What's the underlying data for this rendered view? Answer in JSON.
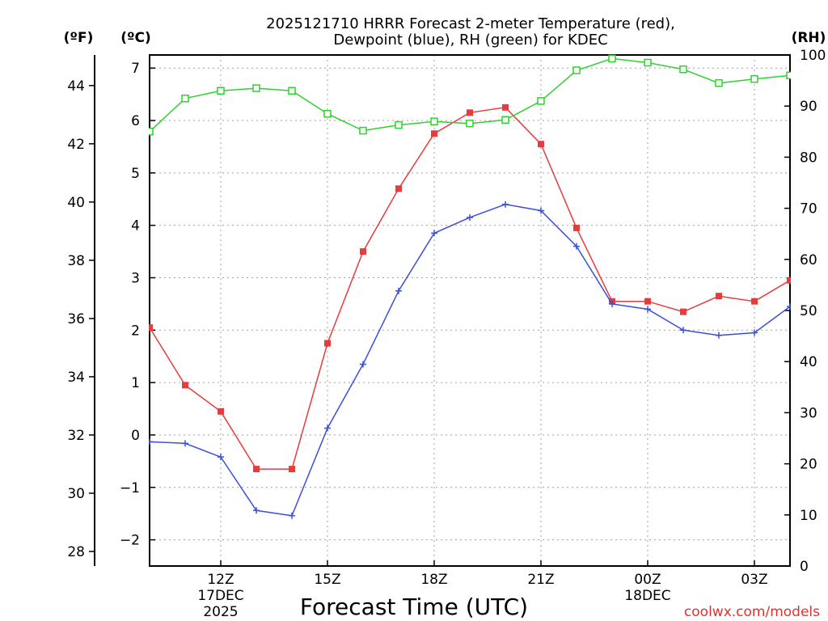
{
  "chart_data": {
    "type": "line",
    "title_line1": "2025121710 HRRR Forecast 2-meter Temperature (red),",
    "title_line2": "Dewpoint (blue), RH (green) for KDEC",
    "xlabel": "Forecast Time (UTC)",
    "unit_f": "(ºF)",
    "unit_c": "(ºC)",
    "unit_rh": "(RH)",
    "credit": "coolwx.com/models",
    "xlim": [
      9,
      27
    ],
    "ylim_c": [
      -2.5,
      7.25
    ],
    "ylim_rh": [
      0,
      100
    ],
    "c_ticks": [
      -2,
      -1,
      0,
      1,
      2,
      3,
      4,
      5,
      6,
      7
    ],
    "f_ticks": [
      28,
      30,
      32,
      34,
      36,
      38,
      40,
      42,
      44
    ],
    "rh_ticks": [
      0,
      10,
      20,
      30,
      40,
      50,
      60,
      70,
      80,
      90,
      100
    ],
    "x_ticks": [
      {
        "x": 11,
        "line1": "12Z",
        "line2": "17DEC",
        "line3": "2025"
      },
      {
        "x": 14,
        "line1": "15Z",
        "line2": "",
        "line3": ""
      },
      {
        "x": 17,
        "line1": "18Z",
        "line2": "",
        "line3": ""
      },
      {
        "x": 20,
        "line1": "21Z",
        "line2": "",
        "line3": ""
      },
      {
        "x": 23,
        "line1": "00Z",
        "line2": "18DEC",
        "line3": ""
      },
      {
        "x": 26,
        "line1": "03Z",
        "line2": "",
        "line3": ""
      }
    ],
    "x": [
      9,
      10,
      11,
      12,
      13,
      14,
      15,
      16,
      17,
      18,
      19,
      20,
      21,
      22,
      23,
      24,
      25,
      26,
      27
    ],
    "series": [
      {
        "name": "Temperature",
        "color": "#e83c3c",
        "marker": "filled-square",
        "values": [
          2.05,
          0.95,
          0.45,
          -0.65,
          -0.65,
          1.75,
          3.5,
          4.7,
          5.75,
          6.15,
          6.25,
          5.55,
          3.95,
          2.55,
          2.55,
          2.35,
          2.65,
          2.55,
          2.95
        ]
      },
      {
        "name": "Dewpoint",
        "color": "#3a4fdc",
        "marker": "plus",
        "values": [
          -0.13,
          -0.16,
          -0.42,
          -1.44,
          -1.54,
          0.13,
          1.35,
          2.75,
          3.85,
          4.15,
          4.4,
          4.28,
          3.6,
          2.5,
          2.4,
          2.0,
          1.9,
          1.95,
          2.45
        ]
      },
      {
        "name": "RH",
        "color": "#30d030",
        "marker": "open-square",
        "axis": "rh",
        "values": [
          85,
          91.5,
          93,
          93.5,
          93,
          88.5,
          85.2,
          86.3,
          87,
          86.6,
          87.3,
          91,
          97,
          99.3,
          98.5,
          97.2,
          94.5,
          95.3,
          96
        ]
      }
    ]
  }
}
